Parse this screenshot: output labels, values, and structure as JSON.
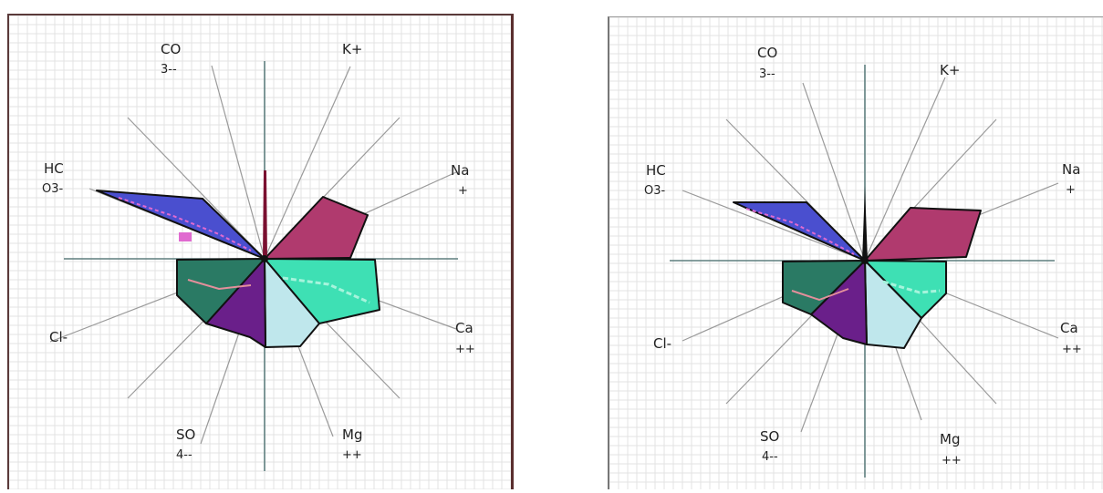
{
  "diagrams": [
    {
      "labels": {
        "co3": [
          "CO",
          "3--"
        ],
        "k": [
          "K+"
        ],
        "na": [
          "Na",
          "+"
        ],
        "hco3": [
          "HC",
          "O3-"
        ],
        "ca": [
          "Ca",
          "++"
        ],
        "cl": [
          "Cl-"
        ],
        "so4": [
          "SO",
          "4--"
        ],
        "mg": [
          "Mg",
          "++"
        ]
      }
    },
    {
      "labels": {
        "co3": [
          "CO",
          "3--"
        ],
        "k": [
          "K+"
        ],
        "na": [
          "Na",
          "+"
        ],
        "hco3": [
          "HC",
          "O3-"
        ],
        "ca": [
          "Ca",
          "++"
        ],
        "cl": [
          "Cl-"
        ],
        "so4": [
          "SO",
          "4--"
        ],
        "mg": [
          "Mg",
          "++"
        ]
      }
    }
  ],
  "colors": {
    "hco3": "#4a4fcf",
    "na": "#b03a6e",
    "ca": "#3ee0b4",
    "cl": "#2a7a64",
    "so4": "#6a1f8a",
    "mg": "#bfe7ec",
    "grid": "#e3e3e3",
    "ray": "#9a9a9a"
  }
}
